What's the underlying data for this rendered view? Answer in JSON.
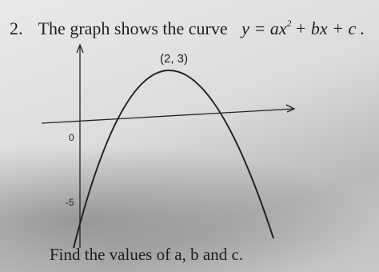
{
  "question": {
    "number": "2.",
    "text": "The graph shows the curve",
    "equation_parts": [
      "y = ax",
      "2",
      "+ bx + c ."
    ]
  },
  "graph": {
    "vertex_label": "(2, 3)",
    "origin_label": "0",
    "intercept_label": "-5"
  },
  "prompt": "Find the values of a, b and c."
}
